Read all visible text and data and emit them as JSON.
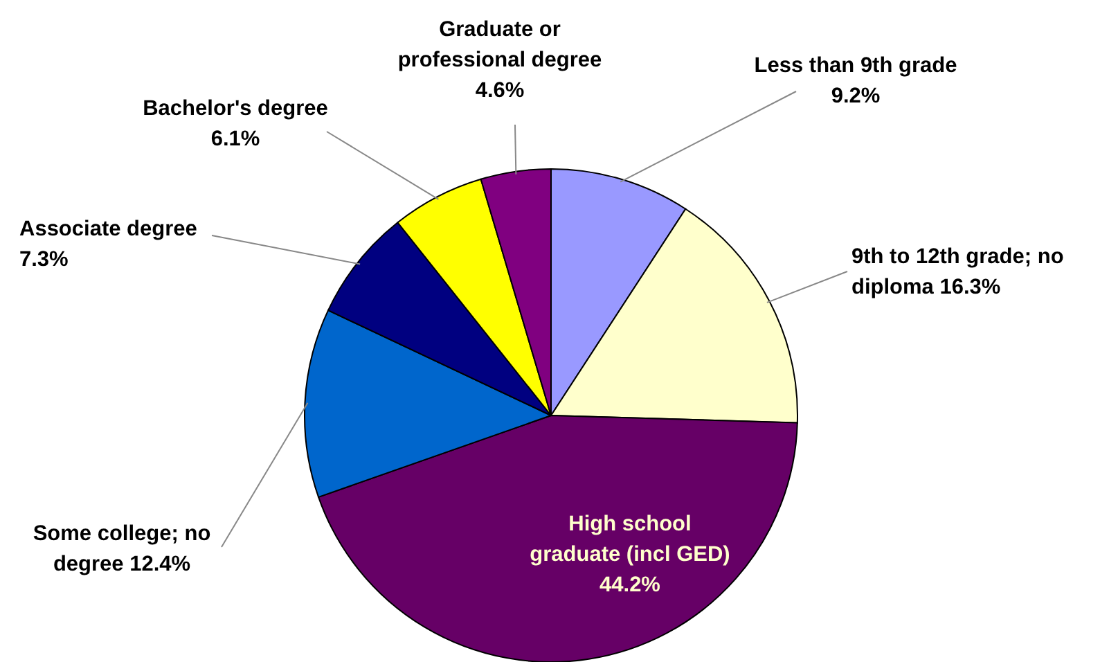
{
  "chart_data": {
    "type": "pie",
    "categories": [
      "Less than 9th grade",
      "9th to 12th grade; no diploma",
      "High school graduate (incl GED)",
      "Some college; no degree",
      "Associate degree",
      "Bachelor's degree",
      "Graduate or professional degree"
    ],
    "values": [
      9.2,
      16.3,
      44.2,
      12.4,
      7.3,
      6.1,
      4.6
    ],
    "value_labels": [
      "9.2%",
      "16.3%",
      "44.2%",
      "12.4%",
      "7.3%",
      "6.1%",
      "4.6%"
    ],
    "colors": [
      "#9999ff",
      "#ffffcc",
      "#660066",
      "#0066cc",
      "#000080",
      "#ffff00",
      "#800080"
    ]
  }
}
